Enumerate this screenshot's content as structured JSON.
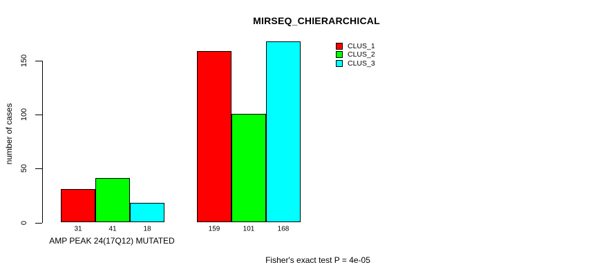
{
  "chart_data": {
    "type": "bar",
    "title": "MIRSEQ_CHIERARCHICAL",
    "ylabel": "number of cases",
    "xlabel": "",
    "yticks": [
      0,
      50,
      100,
      150
    ],
    "ylim": [
      0,
      175
    ],
    "grid": false,
    "legend_position": "top-right",
    "categories": [
      "AMP PEAK 24(17Q12) MUTATED",
      ""
    ],
    "groups": [
      {
        "label": "AMP PEAK 24(17Q12) MUTATED",
        "values": [
          31,
          41,
          18
        ]
      },
      {
        "label": "",
        "values": [
          159,
          101,
          168
        ]
      }
    ],
    "series": [
      {
        "name": "CLUS_1",
        "color": "#FF0000",
        "values": [
          31,
          159
        ]
      },
      {
        "name": "CLUS_2",
        "color": "#00FF00",
        "values": [
          41,
          101
        ]
      },
      {
        "name": "CLUS_3",
        "color": "#00FFFF",
        "values": [
          18,
          168
        ]
      }
    ],
    "bar_value_labels": [
      [
        31,
        41,
        18
      ],
      [
        159,
        101,
        168
      ]
    ],
    "footnote": "Fisher's exact test P = 4e-05",
    "colors": {
      "background": "#FFFFFF",
      "axis": "#000000",
      "text": "#000000"
    }
  }
}
